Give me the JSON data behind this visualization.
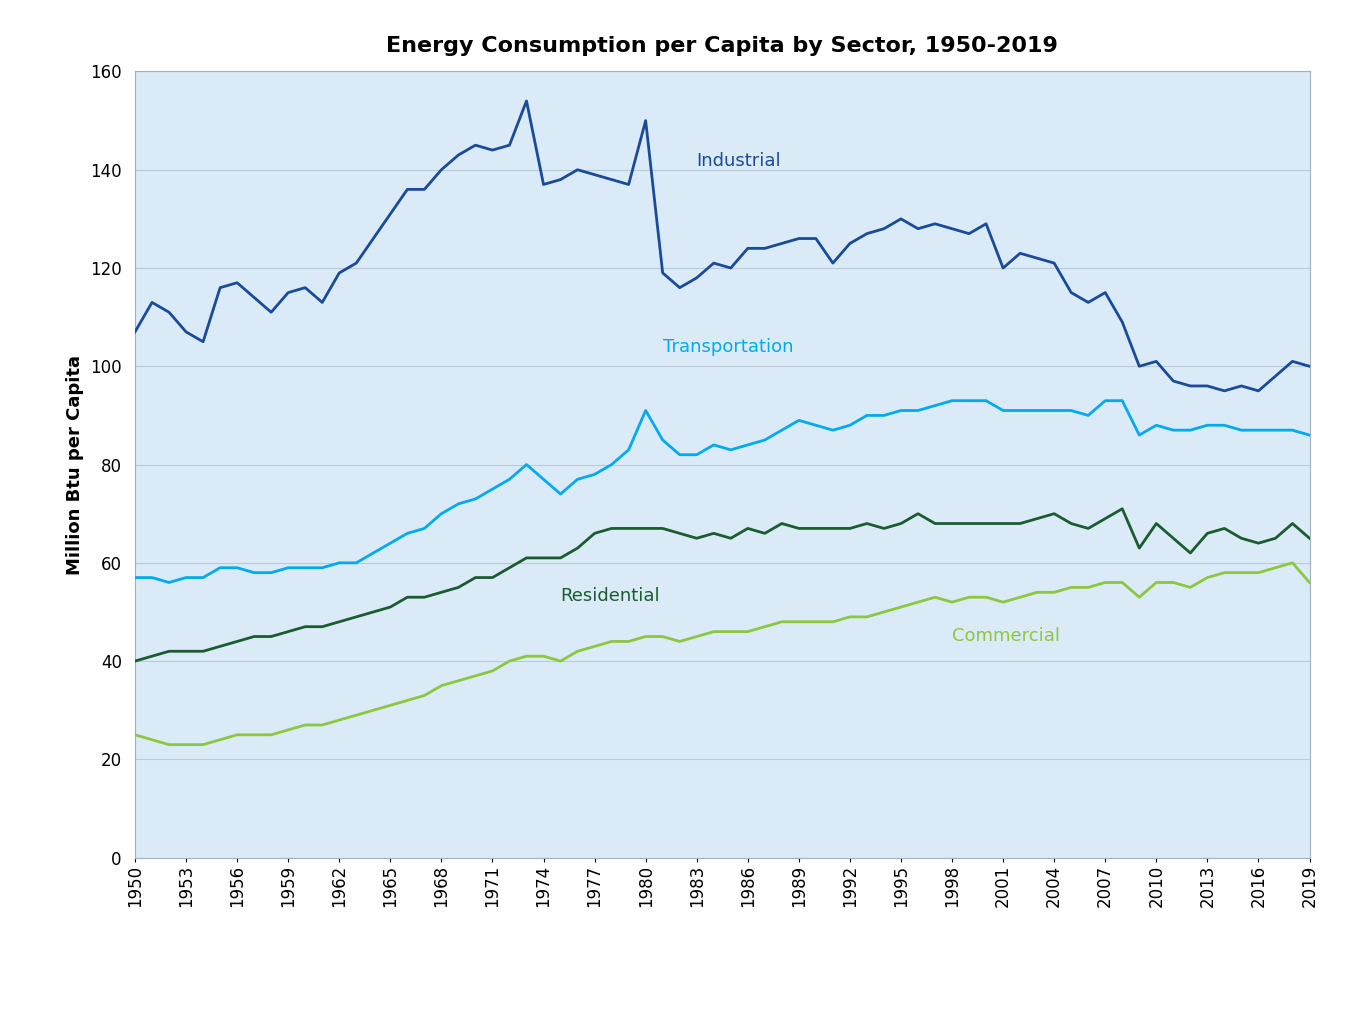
{
  "title": "Energy Consumption per Capita by Sector, 1950-2019",
  "ylabel": "Million Btu per Capita",
  "years": [
    1950,
    1951,
    1952,
    1953,
    1954,
    1955,
    1956,
    1957,
    1958,
    1959,
    1960,
    1961,
    1962,
    1963,
    1964,
    1965,
    1966,
    1967,
    1968,
    1969,
    1970,
    1971,
    1972,
    1973,
    1974,
    1975,
    1976,
    1977,
    1978,
    1979,
    1980,
    1981,
    1982,
    1983,
    1984,
    1985,
    1986,
    1987,
    1988,
    1989,
    1990,
    1991,
    1992,
    1993,
    1994,
    1995,
    1996,
    1997,
    1998,
    1999,
    2000,
    2001,
    2002,
    2003,
    2004,
    2005,
    2006,
    2007,
    2008,
    2009,
    2010,
    2011,
    2012,
    2013,
    2014,
    2015,
    2016,
    2017,
    2018,
    2019
  ],
  "industrial": [
    107,
    113,
    111,
    107,
    105,
    116,
    117,
    114,
    111,
    115,
    116,
    113,
    119,
    121,
    126,
    131,
    136,
    136,
    140,
    143,
    145,
    144,
    145,
    154,
    137,
    138,
    140,
    139,
    138,
    137,
    150,
    119,
    116,
    118,
    121,
    120,
    124,
    124,
    125,
    126,
    126,
    121,
    125,
    127,
    128,
    130,
    128,
    129,
    128,
    127,
    129,
    120,
    123,
    122,
    121,
    115,
    113,
    115,
    109,
    100,
    101,
    97,
    96,
    96,
    95,
    96,
    95,
    98,
    101,
    100
  ],
  "transportation": [
    57,
    57,
    56,
    57,
    57,
    59,
    59,
    58,
    58,
    59,
    59,
    59,
    60,
    60,
    62,
    64,
    66,
    67,
    70,
    72,
    73,
    75,
    77,
    80,
    77,
    74,
    77,
    78,
    80,
    83,
    91,
    85,
    82,
    82,
    84,
    83,
    84,
    85,
    87,
    89,
    88,
    87,
    88,
    90,
    90,
    91,
    91,
    92,
    93,
    93,
    93,
    91,
    91,
    91,
    91,
    91,
    90,
    93,
    93,
    86,
    88,
    87,
    87,
    88,
    88,
    87,
    87,
    87,
    87,
    86
  ],
  "residential": [
    40,
    41,
    42,
    42,
    42,
    43,
    44,
    45,
    45,
    46,
    47,
    47,
    48,
    49,
    50,
    51,
    53,
    53,
    54,
    55,
    57,
    57,
    59,
    61,
    61,
    61,
    63,
    66,
    67,
    67,
    67,
    67,
    66,
    65,
    66,
    65,
    67,
    66,
    68,
    67,
    67,
    67,
    67,
    68,
    67,
    68,
    70,
    68,
    68,
    68,
    68,
    68,
    68,
    69,
    70,
    68,
    67,
    69,
    71,
    63,
    68,
    65,
    62,
    66,
    67,
    65,
    64,
    65,
    68,
    65
  ],
  "commercial": [
    25,
    24,
    23,
    23,
    23,
    24,
    25,
    25,
    25,
    26,
    27,
    27,
    28,
    29,
    30,
    31,
    32,
    33,
    35,
    36,
    37,
    38,
    40,
    41,
    41,
    40,
    42,
    43,
    44,
    44,
    45,
    45,
    44,
    45,
    46,
    46,
    46,
    47,
    48,
    48,
    48,
    48,
    49,
    49,
    50,
    51,
    52,
    53,
    52,
    53,
    53,
    52,
    53,
    54,
    54,
    55,
    55,
    56,
    56,
    53,
    56,
    56,
    55,
    57,
    58,
    58,
    58,
    59,
    60,
    56
  ],
  "industrial_color": "#1a4a9a",
  "transportation_color": "#00aaee",
  "residential_color": "#1a5c30",
  "commercial_color": "#8dc63f",
  "background_color": "#daeaf7",
  "ylim": [
    0,
    160
  ],
  "yticks": [
    0,
    20,
    40,
    60,
    80,
    100,
    120,
    140,
    160
  ],
  "label_industrial": "Industrial",
  "label_transportation": "Transportation",
  "label_residential": "Residential",
  "label_commercial": "Commercial",
  "title_fontsize": 16,
  "axis_label_fontsize": 13,
  "tick_fontsize": 12,
  "line_label_fontsize": 13,
  "line_width": 2.0
}
